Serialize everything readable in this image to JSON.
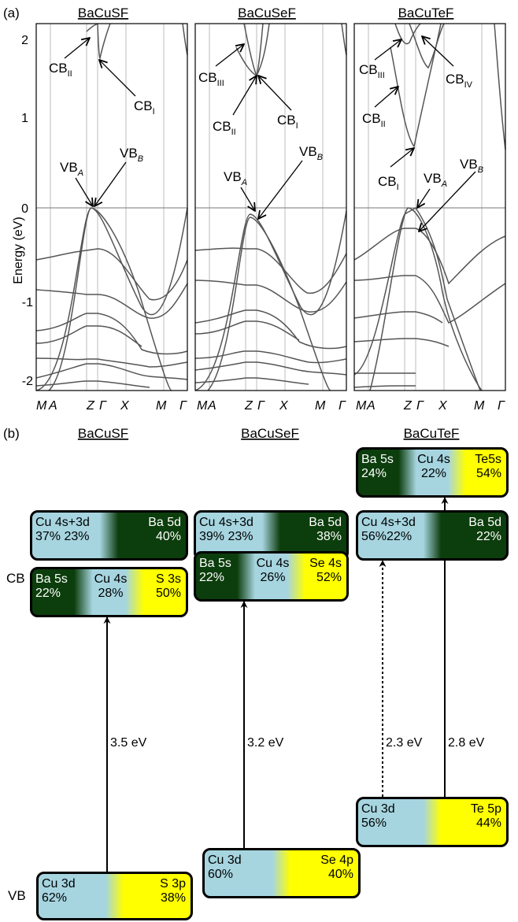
{
  "panel_a": {
    "label": "(a)",
    "ylabel": "Energy (eV)",
    "yticks": [
      "2",
      "1",
      "0",
      "-1",
      "-2"
    ],
    "kpoints": [
      "M",
      "A",
      "Z",
      "Γ",
      "X",
      "M",
      "Γ"
    ],
    "panels": [
      {
        "title": "BaCuSF",
        "annotations": [
          {
            "id": "cb2",
            "base": "CB",
            "sub": "II"
          },
          {
            "id": "cb1",
            "base": "CB",
            "sub": "I"
          },
          {
            "id": "vba",
            "base": "VB",
            "sub": "A"
          },
          {
            "id": "vbb",
            "base": "VB",
            "sub": "B"
          }
        ]
      },
      {
        "title": "BaCuSeF",
        "annotations": [
          {
            "id": "cb3",
            "base": "CB",
            "sub": "III"
          },
          {
            "id": "cb2",
            "base": "CB",
            "sub": "II"
          },
          {
            "id": "cb1",
            "base": "CB",
            "sub": "I"
          },
          {
            "id": "vba",
            "base": "VB",
            "sub": "A"
          },
          {
            "id": "vbb",
            "base": "VB",
            "sub": "B"
          }
        ]
      },
      {
        "title": "BaCuTeF",
        "annotations": [
          {
            "id": "cb3",
            "base": "CB",
            "sub": "III"
          },
          {
            "id": "cb4",
            "base": "CB",
            "sub": "IV"
          },
          {
            "id": "cb2",
            "base": "CB",
            "sub": "II"
          },
          {
            "id": "cb1",
            "base": "CB",
            "sub": "I"
          },
          {
            "id": "vba",
            "base": "VB",
            "sub": "A"
          },
          {
            "id": "vbb",
            "base": "VB",
            "sub": "B"
          }
        ]
      }
    ]
  },
  "panel_b": {
    "label": "(b)",
    "cb_label": "CB",
    "vb_label": "VB",
    "titles": [
      "BaCuSF",
      "BaCuSeF",
      "BaCuTeF"
    ],
    "colors": {
      "ba": "#0c3d0c",
      "cu": "#a6d5e0",
      "anion": "#ffff00"
    },
    "boxes": {
      "s_upper": [
        {
          "name": "Cu 4s+3d",
          "pct": "37% 23%",
          "color": "cu"
        },
        {
          "name": "Ba 5d",
          "pct": "40%",
          "color": "ba"
        }
      ],
      "s_lower": [
        {
          "name": "Ba 5s",
          "pct": "22%",
          "color": "ba"
        },
        {
          "name": "Cu 4s",
          "pct": "28%",
          "color": "cu"
        },
        {
          "name": "S 3s",
          "pct": "50%",
          "color": "anion"
        }
      ],
      "s_vb": [
        {
          "name": "Cu 3d",
          "pct": "62%",
          "color": "cu"
        },
        {
          "name": "S 3p",
          "pct": "38%",
          "color": "anion"
        }
      ],
      "se_upper": [
        {
          "name": "Cu 4s+3d",
          "pct": "39% 23%",
          "color": "cu"
        },
        {
          "name": "Ba 5d",
          "pct": "38%",
          "color": "ba"
        }
      ],
      "se_lower": [
        {
          "name": "Ba 5s",
          "pct": "22%",
          "color": "ba"
        },
        {
          "name": "Cu 4s",
          "pct": "26%",
          "color": "cu"
        },
        {
          "name": "Se 4s",
          "pct": "52%",
          "color": "anion"
        }
      ],
      "se_vb": [
        {
          "name": "Cu 3d",
          "pct": "60%",
          "color": "cu"
        },
        {
          "name": "Se 4p",
          "pct": "40%",
          "color": "anion"
        }
      ],
      "te_top": [
        {
          "name": "Ba 5s",
          "pct": "24%",
          "color": "ba"
        },
        {
          "name": "Cu 4s",
          "pct": "22%",
          "color": "cu"
        },
        {
          "name": "Te5s",
          "pct": "54%",
          "color": "anion"
        }
      ],
      "te_upper": [
        {
          "name": "Cu 4s+3d",
          "pct": "56%22%",
          "color": "cu"
        },
        {
          "name": "Ba 5d",
          "pct": "22%",
          "color": "ba"
        }
      ],
      "te_vb": [
        {
          "name": "Cu 3d",
          "pct": "56%",
          "color": "cu"
        },
        {
          "name": "Te 5p",
          "pct": "44%",
          "color": "anion"
        }
      ]
    },
    "gaps": [
      {
        "id": "s",
        "label": "3.5 eV",
        "style": "solid"
      },
      {
        "id": "se",
        "label": "3.2 eV",
        "style": "solid"
      },
      {
        "id": "te_dotted",
        "label": "2.3 eV",
        "style": "dotted"
      },
      {
        "id": "te_solid",
        "label": "2.8 eV",
        "style": "solid"
      }
    ]
  }
}
